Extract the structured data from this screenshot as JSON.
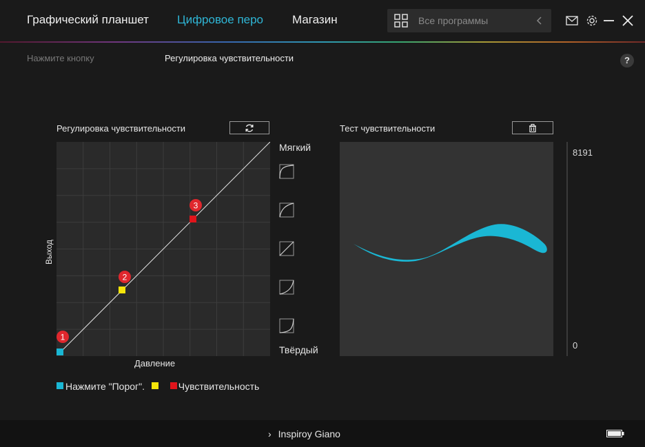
{
  "nav": {
    "tabs": [
      {
        "label": "Графический планшет",
        "active": false
      },
      {
        "label": "Цифровое перо",
        "active": true
      },
      {
        "label": "Магазин",
        "active": false
      }
    ],
    "search_text": "Все программы"
  },
  "subnav": {
    "press_button": "Нажмите кнопку",
    "sensitivity": "Регулировка чувствительности",
    "help": "?"
  },
  "curve_panel": {
    "title": "Регулировка чувствительности",
    "y_label": "Выход",
    "x_label": "Давление",
    "soft_label": "Мягкий",
    "hard_label": "Твёрдый",
    "points": [
      {
        "label": "1",
        "color": "#1ab7d4"
      },
      {
        "label": "2",
        "color": "#f5e50a"
      },
      {
        "label": "3",
        "color": "#e0141b"
      }
    ]
  },
  "legend": {
    "threshold": "Нажмите \"Порог\".",
    "sensitivity": "Чувствительность"
  },
  "test_panel": {
    "title": "Тест чувствительности",
    "max_value": "8191",
    "min_value": "0"
  },
  "footer": {
    "device_name": "Inspiroy Giano"
  },
  "colors": {
    "accent": "#2fb6d6",
    "stroke": "#1ab7d4"
  }
}
